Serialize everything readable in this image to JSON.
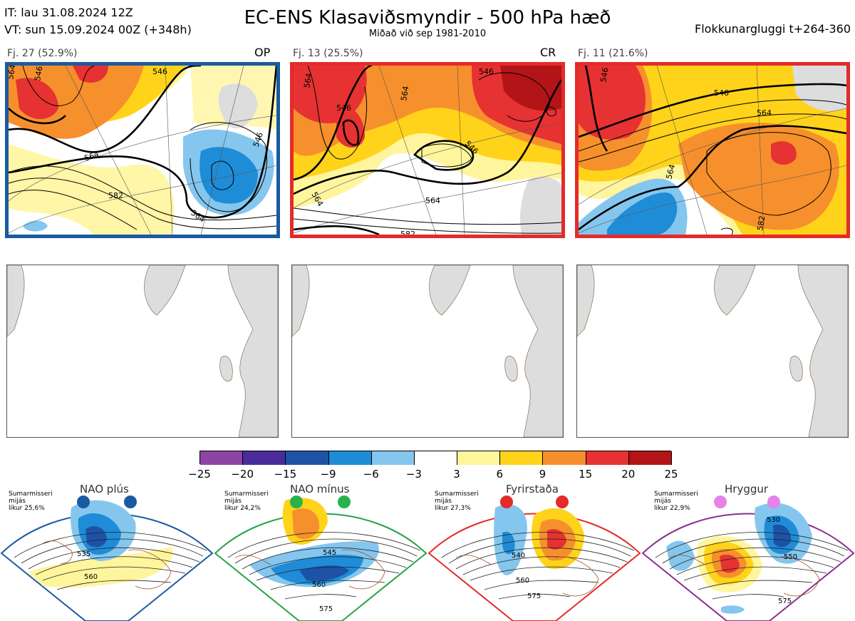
{
  "header": {
    "it_line": "IT: lau 31.08.2024 12Z",
    "vt_line": "VT: sun 15.09.2024 00Z  (+348h)",
    "title": "EC-ENS Klasaviðsmyndir - 500 hPa hæð",
    "subtitle": "Miðað við sep 1981-2010",
    "window": "Flokkunargluggi t+264-360"
  },
  "clusters": [
    {
      "label": "Fj. 27 (52.9%)",
      "tag": "OP",
      "border_color": "#1a5aa0",
      "contour_labels": [
        "564",
        "546",
        "546",
        "564",
        "582",
        "564",
        "546",
        "564",
        "564"
      ]
    },
    {
      "label": "Fj. 13 (25.5%)",
      "tag": "CR",
      "border_color": "#e52a2a",
      "contour_labels": [
        "564",
        "546",
        "546",
        "564",
        "546",
        "564",
        "564",
        "582"
      ]
    },
    {
      "label": "Fj. 11 (21.6%)",
      "tag": "",
      "border_color": "#e52a2a",
      "contour_labels": [
        "546",
        "546",
        "564",
        "564",
        "582"
      ]
    }
  ],
  "colorbar": {
    "colors": [
      "#8e44a4",
      "#4b2a9c",
      "#1d53a6",
      "#1f8cd8",
      "#84c6ee",
      "#ffffff",
      "#fff59d",
      "#ffd31a",
      "#f6902c",
      "#e63232",
      "#b31417"
    ],
    "labels": [
      "−25",
      "−20",
      "−15",
      "−9",
      "−6",
      "−3",
      "3",
      "6",
      "9",
      "15",
      "20",
      "25"
    ]
  },
  "regimes": [
    {
      "title": "NAO plús",
      "note": [
        "Sumarmisseri",
        "mijás",
        "likur 25,6%"
      ],
      "dot_color": "#1a5aa0",
      "frame_color": "#1a5aa0",
      "contour_labels": [
        "535",
        "560"
      ]
    },
    {
      "title": "NAO mínus",
      "note": [
        "Sumarmisseri",
        "mijás",
        "likur 24,2%"
      ],
      "dot_color": "#27b34a",
      "frame_color": "#27a344",
      "contour_labels": [
        "545",
        "560",
        "575"
      ]
    },
    {
      "title": "Fyrirstaða",
      "note": [
        "Sumarmisseri",
        "mijás",
        "likur 27,3%"
      ],
      "dot_color": "#e52a2a",
      "frame_color": "#e52a2a",
      "contour_labels": [
        "540",
        "560",
        "575"
      ]
    },
    {
      "title": "Hryggur",
      "note": [
        "Sumarmisseri",
        "mijás",
        "likur 22,9%"
      ],
      "dot_color": "#e783e7",
      "frame_color": "#8a2f8f",
      "contour_labels": [
        "530",
        "550",
        "575"
      ]
    }
  ]
}
